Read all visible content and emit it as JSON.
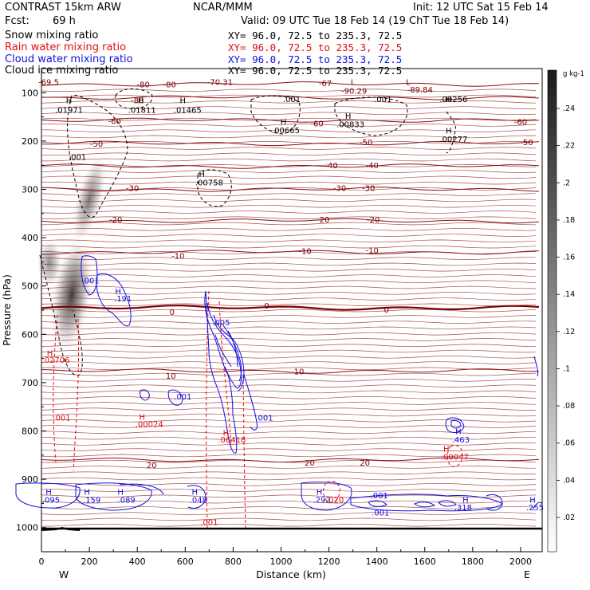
{
  "header": {
    "model": "CONTRAST 15km ARW",
    "center": "NCAR/MMM",
    "init": "Init: 12 UTC Sat 15 Feb 14",
    "fcst_label": "Fcst:",
    "fcst_value": "69 h",
    "valid": "Valid: 09 UTC Tue 18 Feb 14 (19 ChT Tue 18 Feb 14)"
  },
  "fields": [
    {
      "name": "Snow mixing ratio",
      "xy": "XY=   96.0, 72.5 to 235.3, 72.5",
      "color": "#000000"
    },
    {
      "name": "Rain water mixing ratio",
      "xy": "XY=   96.0, 72.5 to 235.3, 72.5",
      "color": "#e01010"
    },
    {
      "name": "Cloud water mixing ratio",
      "xy": "XY=   96.0, 72.5 to 235.3, 72.5",
      "color": "#1010e0"
    },
    {
      "name": "Cloud ice mixing ratio",
      "xy": "XY=   96.0, 72.5 to 235.3, 72.5",
      "color": "#000000"
    }
  ],
  "colorbar": {
    "unit": "g kg-1",
    "ticks": [
      ".24",
      ".22",
      ".2",
      ".18",
      ".16",
      ".14",
      ".12",
      ".1",
      ".08",
      ".06",
      ".04",
      ".02"
    ]
  },
  "chart_data": {
    "type": "cross-section",
    "xlabel": "Distance (km)",
    "ylabel": "Pressure (hPa)",
    "xlim": [
      0,
      2090
    ],
    "ylim": [
      1050,
      50
    ],
    "xticks": [
      "0",
      "200",
      "400",
      "600",
      "800",
      "1000",
      "1200",
      "1400",
      "1600",
      "1800",
      "2000"
    ],
    "yticks": [
      "100",
      "200",
      "300",
      "400",
      "500",
      "600",
      "700",
      "800",
      "900",
      "1000"
    ],
    "x_end_labels": {
      "left": "W",
      "right": "E"
    },
    "temperature_isotherms": [
      {
        "value": "-80",
        "pressure": 82
      },
      {
        "value": "-70",
        "pressure": 110
      },
      {
        "value": "-60",
        "pressure": 157
      },
      {
        "value": "-50",
        "pressure": 205
      },
      {
        "value": "-40",
        "pressure": 252
      },
      {
        "value": "-30",
        "pressure": 300
      },
      {
        "value": "-20",
        "pressure": 365
      },
      {
        "value": "-10",
        "pressure": 430
      },
      {
        "value": "0",
        "pressure": 545
      },
      {
        "value": "10",
        "pressure": 676
      },
      {
        "value": "20",
        "pressure": 860
      }
    ],
    "isotherm_labels": [
      {
        "text": "-69.5",
        "x": 30,
        "p": 77
      },
      {
        "text": "-70.31",
        "x": 745,
        "p": 77
      },
      {
        "text": "-80",
        "x": 535,
        "p": 82
      },
      {
        "text": "-80",
        "x": 425,
        "p": 82
      },
      {
        "text": "-67",
        "x": 1185,
        "p": 80
      },
      {
        "text": "L",
        "x": 1300,
        "p": 77
      },
      {
        "text": "L",
        "x": 1530,
        "p": 77
      },
      {
        "text": "-90.29",
        "x": 1305,
        "p": 95
      },
      {
        "text": "-89.84",
        "x": 1580,
        "p": 93
      },
      {
        "text": "-80",
        "x": 400,
        "p": 115
      },
      {
        "text": "-60",
        "x": 305,
        "p": 158
      },
      {
        "text": "-60",
        "x": 1150,
        "p": 163
      },
      {
        "text": "-60",
        "x": 2000,
        "p": 160
      },
      {
        "text": "-50",
        "x": 230,
        "p": 205
      },
      {
        "text": "-50",
        "x": 1355,
        "p": 202
      },
      {
        "text": "-50",
        "x": 2025,
        "p": 202
      },
      {
        "text": "-40",
        "x": 1210,
        "p": 250
      },
      {
        "text": "-40",
        "x": 1380,
        "p": 250
      },
      {
        "text": "-30",
        "x": 380,
        "p": 297
      },
      {
        "text": "-30",
        "x": 1245,
        "p": 297
      },
      {
        "text": "-30",
        "x": 1365,
        "p": 297
      },
      {
        "text": "-20",
        "x": 310,
        "p": 362
      },
      {
        "text": "-20",
        "x": 1175,
        "p": 362
      },
      {
        "text": "-20",
        "x": 1385,
        "p": 362
      },
      {
        "text": "-10",
        "x": 570,
        "p": 437
      },
      {
        "text": "-10",
        "x": 1100,
        "p": 427
      },
      {
        "text": "-10",
        "x": 1380,
        "p": 425
      },
      {
        "text": "0",
        "x": 545,
        "p": 553
      },
      {
        "text": "0",
        "x": 940,
        "p": 540
      },
      {
        "text": "0",
        "x": 1440,
        "p": 548
      },
      {
        "text": "10",
        "x": 540,
        "p": 685
      },
      {
        "text": "10",
        "x": 1075,
        "p": 676
      },
      {
        "text": "20",
        "x": 460,
        "p": 870
      },
      {
        "text": "20",
        "x": 1120,
        "p": 865
      },
      {
        "text": "20",
        "x": 1350,
        "p": 865
      }
    ],
    "extrema_labels": [
      {
        "text": "H",
        "x": 115,
        "p": 115,
        "color": "#000000"
      },
      {
        "text": ".01971",
        "x": 115,
        "p": 135,
        "color": "#000000"
      },
      {
        "text": "H",
        "x": 415,
        "p": 115,
        "color": "#000000"
      },
      {
        "text": ".01811",
        "x": 420,
        "p": 135,
        "color": "#000000"
      },
      {
        "text": "H",
        "x": 590,
        "p": 115,
        "color": "#000000"
      },
      {
        "text": ".01465",
        "x": 610,
        "p": 135,
        "color": "#000000"
      },
      {
        "text": ".001",
        "x": 1045,
        "p": 113,
        "color": "#000000"
      },
      {
        "text": ".001",
        "x": 1425,
        "p": 113,
        "color": "#000000"
      },
      {
        "text": "H",
        "x": 1700,
        "p": 113,
        "color": "#000000"
      },
      {
        "text": ".00256",
        "x": 1720,
        "p": 113,
        "color": "#000000"
      },
      {
        "text": "H",
        "x": 1010,
        "p": 160,
        "color": "#000000"
      },
      {
        "text": ".00665",
        "x": 1020,
        "p": 177,
        "color": "#000000"
      },
      {
        "text": "H",
        "x": 1280,
        "p": 147,
        "color": "#000000"
      },
      {
        "text": ".00833",
        "x": 1290,
        "p": 165,
        "color": "#000000"
      },
      {
        "text": "H",
        "x": 1700,
        "p": 178,
        "color": "#000000"
      },
      {
        "text": ".00277",
        "x": 1720,
        "p": 195,
        "color": "#000000"
      },
      {
        "text": ".001",
        "x": 150,
        "p": 232,
        "color": "#000000"
      },
      {
        "text": "H",
        "x": 670,
        "p": 268,
        "color": "#000000"
      },
      {
        "text": ".00758",
        "x": 700,
        "p": 285,
        "color": "#000000"
      },
      {
        "text": ".001",
        "x": 205,
        "p": 488,
        "color": "#1010e0"
      },
      {
        "text": "H",
        "x": 320,
        "p": 510,
        "color": "#1010e0"
      },
      {
        "text": ".191",
        "x": 340,
        "p": 525,
        "color": "#1010e0"
      },
      {
        "text": ".005",
        "x": 750,
        "p": 575,
        "color": "#1010e0"
      },
      {
        "text": "H",
        "x": 35,
        "p": 638,
        "color": "#e01010"
      },
      {
        "text": ".02706",
        "x": 60,
        "p": 652,
        "color": "#e01010"
      },
      {
        "text": ".001",
        "x": 590,
        "p": 728,
        "color": "#1010e0"
      },
      {
        "text": ".001",
        "x": 85,
        "p": 772,
        "color": "#e01010"
      },
      {
        "text": ".001",
        "x": 930,
        "p": 772,
        "color": "#1010e0"
      },
      {
        "text": "H",
        "x": 420,
        "p": 770,
        "color": "#e01010"
      },
      {
        "text": ".00024",
        "x": 450,
        "p": 785,
        "color": "#e01010"
      },
      {
        "text": "H",
        "x": 770,
        "p": 803,
        "color": "#e01010"
      },
      {
        "text": ".06418",
        "x": 795,
        "p": 817,
        "color": "#e01010"
      },
      {
        "text": "H",
        "x": 1740,
        "p": 800,
        "color": "#1010e0"
      },
      {
        "text": ".463",
        "x": 1750,
        "p": 817,
        "color": "#1010e0"
      },
      {
        "text": "H",
        "x": 1690,
        "p": 836,
        "color": "#e01010"
      },
      {
        "text": ".00047",
        "x": 1725,
        "p": 853,
        "color": "#e01010"
      },
      {
        "text": "H",
        "x": 30,
        "p": 925,
        "color": "#1010e0"
      },
      {
        "text": ".095",
        "x": 40,
        "p": 942,
        "color": "#1010e0"
      },
      {
        "text": "H",
        "x": 190,
        "p": 925,
        "color": "#1010e0"
      },
      {
        "text": ".159",
        "x": 210,
        "p": 942,
        "color": "#1010e0"
      },
      {
        "text": "H",
        "x": 330,
        "p": 925,
        "color": "#1010e0"
      },
      {
        "text": ".089",
        "x": 355,
        "p": 942,
        "color": "#1010e0"
      },
      {
        "text": "H",
        "x": 640,
        "p": 925,
        "color": "#1010e0"
      },
      {
        "text": ".048",
        "x": 655,
        "p": 942,
        "color": "#1010e0"
      },
      {
        "text": "H",
        "x": 1160,
        "p": 925,
        "color": "#1010e0"
      },
      {
        "text": ".292",
        "x": 1170,
        "p": 942,
        "color": "#1010e0"
      },
      {
        "text": ".020",
        "x": 1225,
        "p": 942,
        "color": "#e01010"
      },
      {
        "text": ".001",
        "x": 1410,
        "p": 933,
        "color": "#1010e0"
      },
      {
        "text": ".001",
        "x": 1415,
        "p": 968,
        "color": "#1010e0"
      },
      {
        "text": "H",
        "x": 1770,
        "p": 942,
        "color": "#1010e0"
      },
      {
        "text": ".318",
        "x": 1760,
        "p": 958,
        "color": "#1010e0"
      },
      {
        "text": "H",
        "x": 2050,
        "p": 942,
        "color": "#1010e0"
      },
      {
        "text": ".255",
        "x": 2060,
        "p": 958,
        "color": "#1010e0"
      },
      {
        "text": ".001",
        "x": 700,
        "p": 988,
        "color": "#e01010"
      }
    ]
  }
}
